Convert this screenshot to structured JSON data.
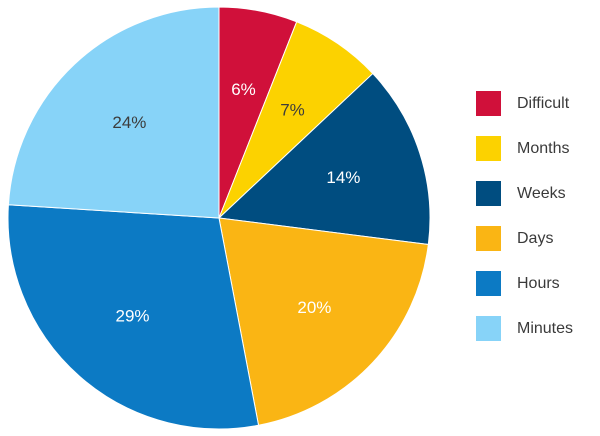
{
  "chart_data": {
    "type": "pie",
    "title": "",
    "slices": [
      {
        "name": "Difficult",
        "value": 6,
        "label": "6%",
        "color": "#d0103a",
        "label_color": "#ffffff"
      },
      {
        "name": "Months",
        "value": 7,
        "label": "7%",
        "color": "#fcd200",
        "label_color": "#3c3c3c"
      },
      {
        "name": "Weeks",
        "value": 14,
        "label": "14%",
        "color": "#004d80",
        "label_color": "#ffffff"
      },
      {
        "name": "Days",
        "value": 20,
        "label": "20%",
        "color": "#fab514",
        "label_color": "#ffffff"
      },
      {
        "name": "Hours",
        "value": 29,
        "label": "29%",
        "color": "#0c7ac4",
        "label_color": "#ffffff"
      },
      {
        "name": "Minutes",
        "value": 24,
        "label": "24%",
        "color": "#87d3f8",
        "label_color": "#3c3c3c"
      }
    ],
    "start_angle_deg": 0,
    "direction": "clockwise",
    "legend_position": "right"
  },
  "legend": {
    "items": [
      {
        "label": "Difficult",
        "color": "#d0103a"
      },
      {
        "label": "Months",
        "color": "#fcd200"
      },
      {
        "label": "Weeks",
        "color": "#004d80"
      },
      {
        "label": "Days",
        "color": "#fab514"
      },
      {
        "label": "Hours",
        "color": "#0c7ac4"
      },
      {
        "label": "Minutes",
        "color": "#87d3f8"
      }
    ]
  }
}
